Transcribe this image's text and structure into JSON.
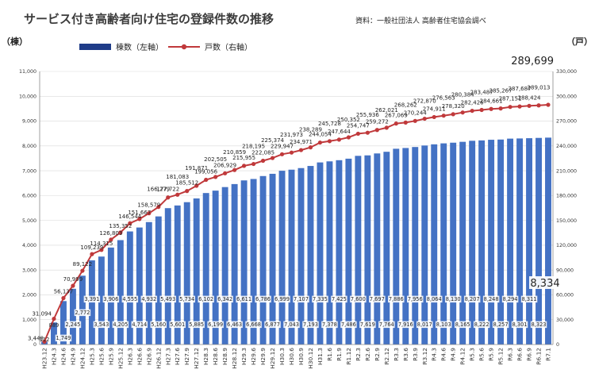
{
  "header": {
    "title": "サービス付き高齢者向け住宅の登録件数の推移",
    "source": "資料：一般社団法人 高齢者住宅協会調べ"
  },
  "units": {
    "left": "（棟）",
    "right": "（戸）"
  },
  "legend": {
    "bars": "棟数（左軸）",
    "line": "戸数（右軸）"
  },
  "colors": {
    "bar": "#4472c4",
    "bar_legend": "#1f3c88",
    "line": "#c0393b",
    "axis": "#888888",
    "grid": "#d9d9d9"
  },
  "chart_data": {
    "type": "bar+line",
    "title": "サービス付き高齢者向け住宅の登録件数の推移",
    "categories": [
      "H23.12",
      "H24.3",
      "H24.6",
      "H24.9",
      "H24.12",
      "H25.3",
      "H25.6",
      "H25.9",
      "H25.12",
      "H26.3",
      "H26.6",
      "H26.9",
      "H26.12",
      "H27.3",
      "H27.6",
      "H27.9",
      "H27.12",
      "H28.3",
      "H28.6",
      "H28.9",
      "H28.12",
      "H29.3",
      "H29.6",
      "H29.9",
      "H29.12",
      "H30.3",
      "H30.6",
      "H30.9",
      "H30.12",
      "H31.3",
      "R1.6",
      "R1.9",
      "R1.12",
      "R2.3",
      "R2.6",
      "R2.9",
      "R2.12",
      "R3.3",
      "R3.6",
      "R3.9",
      "R3.12",
      "R4.3",
      "R4.6",
      "R4.9",
      "R4.12",
      "R5.3",
      "R5.6",
      "R5.9",
      "R5.12",
      "R6.3",
      "R6.6",
      "R6.9",
      "R6.12",
      "R7.1"
    ],
    "y_left": {
      "label": "（棟）",
      "min": 0,
      "max": 11000,
      "ticks": [
        "0",
        "1,000",
        "2,000",
        "3,000",
        "4,000",
        "5,000",
        "6,000",
        "7,000",
        "8,000",
        "9,000",
        "10,000",
        "11,000"
      ]
    },
    "y_right": {
      "label": "（戸）",
      "min": 0,
      "max": 330000,
      "ticks": [
        "0",
        "30,000",
        "60,000",
        "90,000",
        "120,000",
        "150,000",
        "180,000",
        "210,000",
        "240,000",
        "270,000",
        "300,000",
        "330,000"
      ]
    },
    "series": [
      {
        "name": "棟数（左軸）",
        "type": "bar",
        "axis": "left",
        "values": [
          112,
          889,
          1749,
          2245,
          2772,
          3391,
          3543,
          3906,
          4205,
          4555,
          4714,
          4932,
          5160,
          5493,
          5601,
          5734,
          5885,
          6102,
          6199,
          6342,
          6463,
          6611,
          6668,
          6786,
          6877,
          6999,
          7043,
          7107,
          7193,
          7335,
          7378,
          7425,
          7486,
          7600,
          7619,
          7697,
          7764,
          7886,
          7916,
          7956,
          8017,
          8064,
          8103,
          8130,
          8165,
          8207,
          8222,
          8248,
          8257,
          8294,
          8301,
          8311,
          8323,
          8334
        ],
        "labels": [
          "112",
          "889",
          "1,749",
          "2,245",
          "2,772",
          "3,391",
          "3,543",
          "3,906",
          "4,205",
          "4,555",
          "4,714",
          "4,932",
          "5,160",
          "5,493",
          "5,601",
          "5,734",
          "5,885",
          "6,102",
          "6,199",
          "6,342",
          "6,463",
          "6,611",
          "6,668",
          "6,786",
          "6,877",
          "6,999",
          "7,043",
          "7,107",
          "7,193",
          "7,335",
          "7,378",
          "7,425",
          "7,486",
          "7,600",
          "7,619",
          "7,697",
          "7,764",
          "7,886",
          "7,916",
          "7,956",
          "8,017",
          "8,064",
          "8,103",
          "8,130",
          "8,165",
          "8,207",
          "8,222",
          "8,248",
          "8,257",
          "8,294",
          "8,301",
          "8,311",
          "8,323",
          "8,334"
        ]
      },
      {
        "name": "戸数（右軸）",
        "type": "line",
        "axis": "right",
        "values": [
          3448,
          31094,
          56137,
          70999,
          89122,
          109239,
          114315,
          126803,
          135352,
          146544,
          151667,
          158579,
          166279,
          177722,
          181083,
          185512,
          191871,
          199056,
          202505,
          206929,
          210859,
          215955,
          218195,
          222085,
          225374,
          229947,
          231973,
          234971,
          238289,
          244054,
          245728,
          247644,
          250352,
          254747,
          255936,
          259272,
          262021,
          267069,
          268262,
          270244,
          272870,
          274911,
          276563,
          278320,
          280384,
          282426,
          283487,
          284661,
          285267,
          287151,
          287687,
          288424,
          289013,
          289699
        ],
        "labels": [
          "3,448",
          "31,094",
          "56,137",
          "70,999",
          "89,122",
          "109,239",
          "114,315",
          "126,803",
          "135,352",
          "146,544",
          "151,667",
          "158,579",
          "166,279",
          "177,722",
          "181,083",
          "185,512",
          "191,871",
          "199,056",
          "202,505",
          "206,929",
          "210,859",
          "215,955",
          "218,195",
          "222,085",
          "225,374",
          "229,947",
          "231,973",
          "234,971",
          "238,289",
          "244,054",
          "245,728",
          "247,644",
          "250,352",
          "254,747",
          "255,936",
          "259,272",
          "262,021",
          "267,069",
          "268,262",
          "270,244",
          "272,870",
          "274,911",
          "276,563",
          "278,320",
          "280,384",
          "282,426",
          "283,487",
          "284,661",
          "285,267",
          "287,151",
          "287,687",
          "288,424",
          "289,013",
          "289,699"
        ]
      }
    ],
    "highlight": {
      "bar_last": "8,334",
      "line_last": "289,699"
    },
    "legend_position": "top-left",
    "grid": true
  }
}
